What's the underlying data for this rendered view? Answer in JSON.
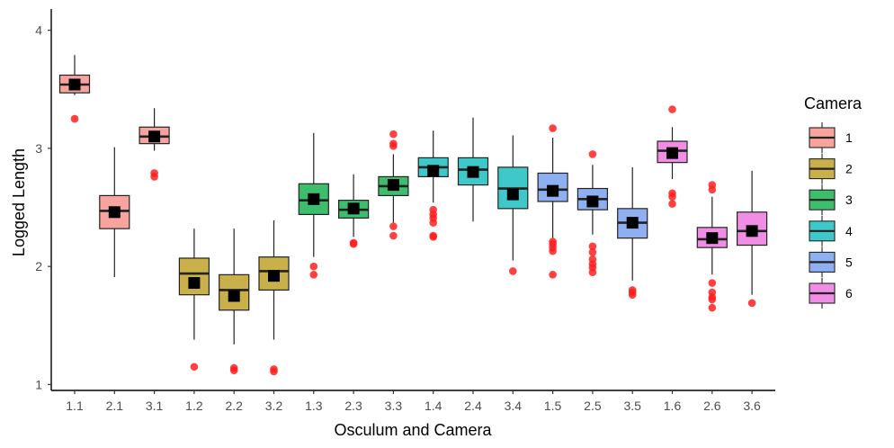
{
  "chart_data": {
    "type": "box",
    "xlabel": "Osculum and Camera",
    "ylabel": "Logged Length",
    "ylim": [
      0.95,
      4.18
    ],
    "yticks": [
      1,
      2,
      3,
      4
    ],
    "y_tick_labels": [
      "1",
      "2",
      "3",
      "4"
    ],
    "grid": false,
    "legend": {
      "title": "Camera",
      "position": "right",
      "entries": [
        {
          "label": "1",
          "color": "#F8A39D"
        },
        {
          "label": "2",
          "color": "#C9B04B"
        },
        {
          "label": "3",
          "color": "#3EBE6C"
        },
        {
          "label": "4",
          "color": "#3FC8CA"
        },
        {
          "label": "5",
          "color": "#8EB0F2"
        },
        {
          "label": "6",
          "color": "#F08EE6"
        }
      ]
    },
    "mean_marker": "black square",
    "outlier_color": "#FF2020",
    "categories": [
      "1.1",
      "2.1",
      "3.1",
      "1.2",
      "2.2",
      "3.2",
      "1.3",
      "2.3",
      "3.3",
      "1.4",
      "2.4",
      "3.4",
      "1.5",
      "2.5",
      "3.5",
      "1.6",
      "2.6",
      "3.6"
    ],
    "boxes": [
      {
        "category": "1.1",
        "camera": "1",
        "min": 3.45,
        "q1": 3.47,
        "median": 3.54,
        "q3": 3.62,
        "max": 3.79,
        "mean": 3.54,
        "outliers": [
          3.25
        ]
      },
      {
        "category": "2.1",
        "camera": "1",
        "min": 1.91,
        "q1": 2.32,
        "median": 2.47,
        "q3": 2.6,
        "max": 3.01,
        "mean": 2.46,
        "outliers": []
      },
      {
        "category": "3.1",
        "camera": "1",
        "min": 2.98,
        "q1": 3.04,
        "median": 3.1,
        "q3": 3.18,
        "max": 3.34,
        "mean": 3.1,
        "outliers": [
          2.79,
          2.76
        ]
      },
      {
        "category": "1.2",
        "camera": "2",
        "min": 1.38,
        "q1": 1.76,
        "median": 1.94,
        "q3": 2.07,
        "max": 2.32,
        "mean": 1.86,
        "outliers": [
          1.15
        ]
      },
      {
        "category": "2.2",
        "camera": "2",
        "min": 1.34,
        "q1": 1.63,
        "median": 1.8,
        "q3": 1.93,
        "max": 2.32,
        "mean": 1.75,
        "outliers": [
          1.14,
          1.12
        ]
      },
      {
        "category": "3.2",
        "camera": "2",
        "min": 1.38,
        "q1": 1.8,
        "median": 1.96,
        "q3": 2.08,
        "max": 2.39,
        "mean": 1.92,
        "outliers": [
          1.13,
          1.11
        ]
      },
      {
        "category": "1.3",
        "camera": "3",
        "min": 2.08,
        "q1": 2.44,
        "median": 2.56,
        "q3": 2.7,
        "max": 3.13,
        "mean": 2.57,
        "outliers": [
          2.0,
          1.93
        ]
      },
      {
        "category": "2.3",
        "camera": "3",
        "min": 2.25,
        "q1": 2.41,
        "median": 2.48,
        "q3": 2.56,
        "max": 2.78,
        "mean": 2.49,
        "outliers": [
          2.19,
          2.2
        ]
      },
      {
        "category": "3.3",
        "camera": "3",
        "min": 2.37,
        "q1": 2.6,
        "median": 2.68,
        "q3": 2.76,
        "max": 2.95,
        "mean": 2.69,
        "outliers": [
          3.12,
          3.04,
          3.02,
          2.34,
          2.26
        ]
      },
      {
        "category": "1.4",
        "camera": "4",
        "min": 2.54,
        "q1": 2.76,
        "median": 2.84,
        "q3": 2.92,
        "max": 3.15,
        "mean": 2.81,
        "outliers": [
          2.48,
          2.44,
          2.41,
          2.37,
          2.26,
          2.25
        ]
      },
      {
        "category": "2.4",
        "camera": "4",
        "min": 2.38,
        "q1": 2.69,
        "median": 2.82,
        "q3": 2.92,
        "max": 3.26,
        "mean": 2.8,
        "outliers": []
      },
      {
        "category": "3.4",
        "camera": "4",
        "min": 2.05,
        "q1": 2.49,
        "median": 2.66,
        "q3": 2.84,
        "max": 3.11,
        "mean": 2.61,
        "outliers": [
          1.96
        ]
      },
      {
        "category": "1.5",
        "camera": "5",
        "min": 2.24,
        "q1": 2.55,
        "median": 2.65,
        "q3": 2.79,
        "max": 3.09,
        "mean": 2.64,
        "outliers": [
          3.17,
          2.21,
          2.19,
          2.16,
          2.13,
          1.93
        ]
      },
      {
        "category": "2.5",
        "camera": "5",
        "min": 2.27,
        "q1": 2.48,
        "median": 2.57,
        "q3": 2.66,
        "max": 2.86,
        "mean": 2.55,
        "outliers": [
          2.95,
          2.17,
          2.12,
          2.06,
          2.02,
          1.99,
          1.95
        ]
      },
      {
        "category": "3.5",
        "camera": "5",
        "min": 1.88,
        "q1": 2.24,
        "median": 2.37,
        "q3": 2.49,
        "max": 2.84,
        "mean": 2.37,
        "outliers": [
          1.8,
          1.78,
          1.76
        ]
      },
      {
        "category": "1.6",
        "camera": "6",
        "min": 2.74,
        "q1": 2.88,
        "median": 2.98,
        "q3": 3.06,
        "max": 3.18,
        "mean": 2.96,
        "outliers": [
          3.33,
          2.62,
          2.59,
          2.53
        ]
      },
      {
        "category": "2.6",
        "camera": "6",
        "min": 1.93,
        "q1": 2.16,
        "median": 2.23,
        "q3": 2.33,
        "max": 2.59,
        "mean": 2.24,
        "outliers": [
          2.69,
          2.65,
          1.86,
          1.78,
          1.74,
          1.72,
          1.65
        ]
      },
      {
        "category": "3.6",
        "camera": "6",
        "min": 1.76,
        "q1": 2.18,
        "median": 2.3,
        "q3": 2.46,
        "max": 2.81,
        "mean": 2.3,
        "outliers": [
          1.69
        ]
      }
    ]
  }
}
